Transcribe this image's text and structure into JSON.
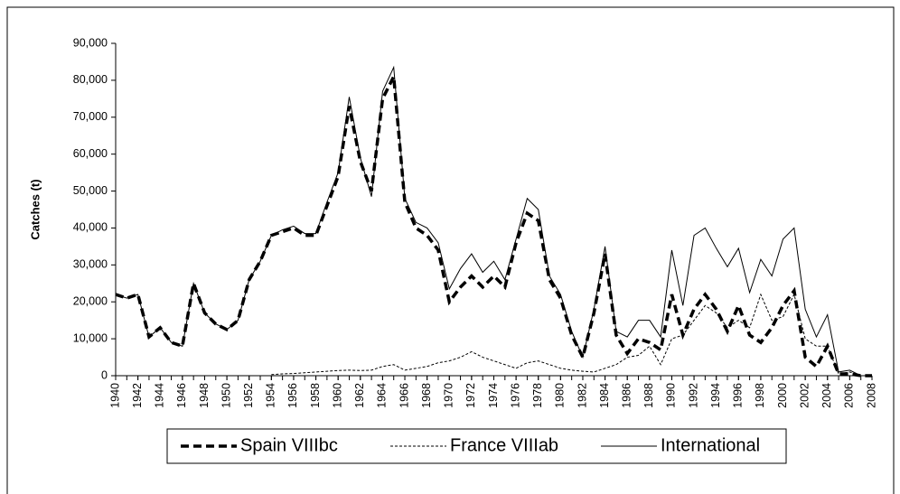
{
  "chart_data": {
    "type": "line",
    "ylabel": "Catches (t)",
    "x": [
      1940,
      1941,
      1942,
      1943,
      1944,
      1945,
      1946,
      1947,
      1948,
      1949,
      1950,
      1951,
      1952,
      1953,
      1954,
      1955,
      1956,
      1957,
      1958,
      1959,
      1960,
      1961,
      1962,
      1963,
      1964,
      1965,
      1966,
      1967,
      1968,
      1969,
      1970,
      1971,
      1972,
      1973,
      1974,
      1975,
      1976,
      1977,
      1978,
      1979,
      1980,
      1981,
      1982,
      1983,
      1984,
      1985,
      1986,
      1987,
      1988,
      1989,
      1990,
      1991,
      1992,
      1993,
      1994,
      1995,
      1996,
      1997,
      1998,
      1999,
      2000,
      2001,
      2002,
      2003,
      2004,
      2005,
      2006,
      2007,
      2008
    ],
    "xlim": [
      1940,
      2008
    ],
    "xticks": [
      1940,
      1942,
      1944,
      1946,
      1948,
      1950,
      1952,
      1954,
      1956,
      1958,
      1960,
      1962,
      1964,
      1966,
      1968,
      1970,
      1972,
      1974,
      1976,
      1978,
      1980,
      1982,
      1984,
      1986,
      1988,
      1990,
      1992,
      1994,
      1996,
      1998,
      2000,
      2002,
      2004,
      2006,
      2008
    ],
    "ylim": [
      0,
      90000
    ],
    "yticks": [
      0,
      {
        "value": 10000,
        "label": "10,000"
      },
      {
        "value": 20000,
        "label": "20,000"
      },
      {
        "value": 30000,
        "label": "30,000"
      },
      {
        "value": 40000,
        "label": "40,000"
      },
      {
        "value": 50000,
        "label": "50,000"
      },
      {
        "value": 60000,
        "label": "60,000"
      },
      {
        "value": 70000,
        "label": "70,000"
      },
      {
        "value": 80000,
        "label": "80,000"
      },
      {
        "value": 90000,
        "label": "90,000"
      }
    ],
    "legend": "bottom",
    "series": [
      {
        "name": "Spain VIIIbc",
        "color": "#000000",
        "width": 3.5,
        "dash": "9,5",
        "values": [
          22000,
          21000,
          22000,
          10500,
          13000,
          9000,
          8000,
          25000,
          17000,
          14000,
          12500,
          15000,
          26000,
          31000,
          38000,
          39000,
          40000,
          38000,
          38000,
          46000,
          54000,
          73000,
          58000,
          50000,
          75000,
          81000,
          47000,
          40000,
          38000,
          34000,
          20000,
          24000,
          27000,
          24000,
          27000,
          24000,
          36000,
          44000,
          42000,
          26000,
          21000,
          11000,
          5000,
          17000,
          33000,
          11000,
          6000,
          10000,
          9000,
          7000,
          22000,
          11000,
          18000,
          22000,
          18000,
          12000,
          19000,
          11000,
          9000,
          13000,
          19000,
          23000,
          5000,
          2500,
          8000,
          500,
          500,
          0,
          0
        ]
      },
      {
        "name": "France VIIIab",
        "color": "#000000",
        "width": 1,
        "dash": "3,2",
        "values": [
          null,
          null,
          null,
          null,
          null,
          null,
          null,
          null,
          null,
          null,
          null,
          null,
          null,
          null,
          300,
          500,
          600,
          800,
          1000,
          1200,
          1400,
          1500,
          1400,
          1500,
          2500,
          3000,
          1500,
          2000,
          2500,
          3500,
          4000,
          5000,
          6500,
          5000,
          4000,
          3000,
          2000,
          3500,
          4000,
          3000,
          2000,
          1500,
          1200,
          1000,
          2000,
          3000,
          5000,
          5500,
          8000,
          3000,
          10000,
          11000,
          15000,
          19000,
          17000,
          13000,
          15000,
          13000,
          22000,
          15000,
          16000,
          22000,
          10000,
          8000,
          8000,
          500,
          1000,
          0,
          0
        ]
      },
      {
        "name": "International",
        "color": "#000000",
        "width": 1,
        "dash": "none",
        "values": [
          22000,
          21000,
          22000,
          10500,
          13000,
          9000,
          8000,
          25000,
          17000,
          14000,
          12500,
          15000,
          26000,
          31000,
          38000,
          39500,
          40500,
          38500,
          38500,
          47000,
          55000,
          75500,
          59000,
          48500,
          77000,
          83500,
          48000,
          41500,
          40000,
          36000,
          23500,
          29000,
          33000,
          28000,
          31000,
          26000,
          37000,
          48000,
          45000,
          27000,
          22000,
          12000,
          5000,
          18000,
          35000,
          12000,
          10500,
          15000,
          15000,
          10500,
          34000,
          19000,
          38000,
          40000,
          34500,
          29500,
          34500,
          22500,
          31500,
          27000,
          37000,
          40000,
          18000,
          10500,
          16500,
          1000,
          1500,
          0,
          0
        ]
      }
    ]
  }
}
